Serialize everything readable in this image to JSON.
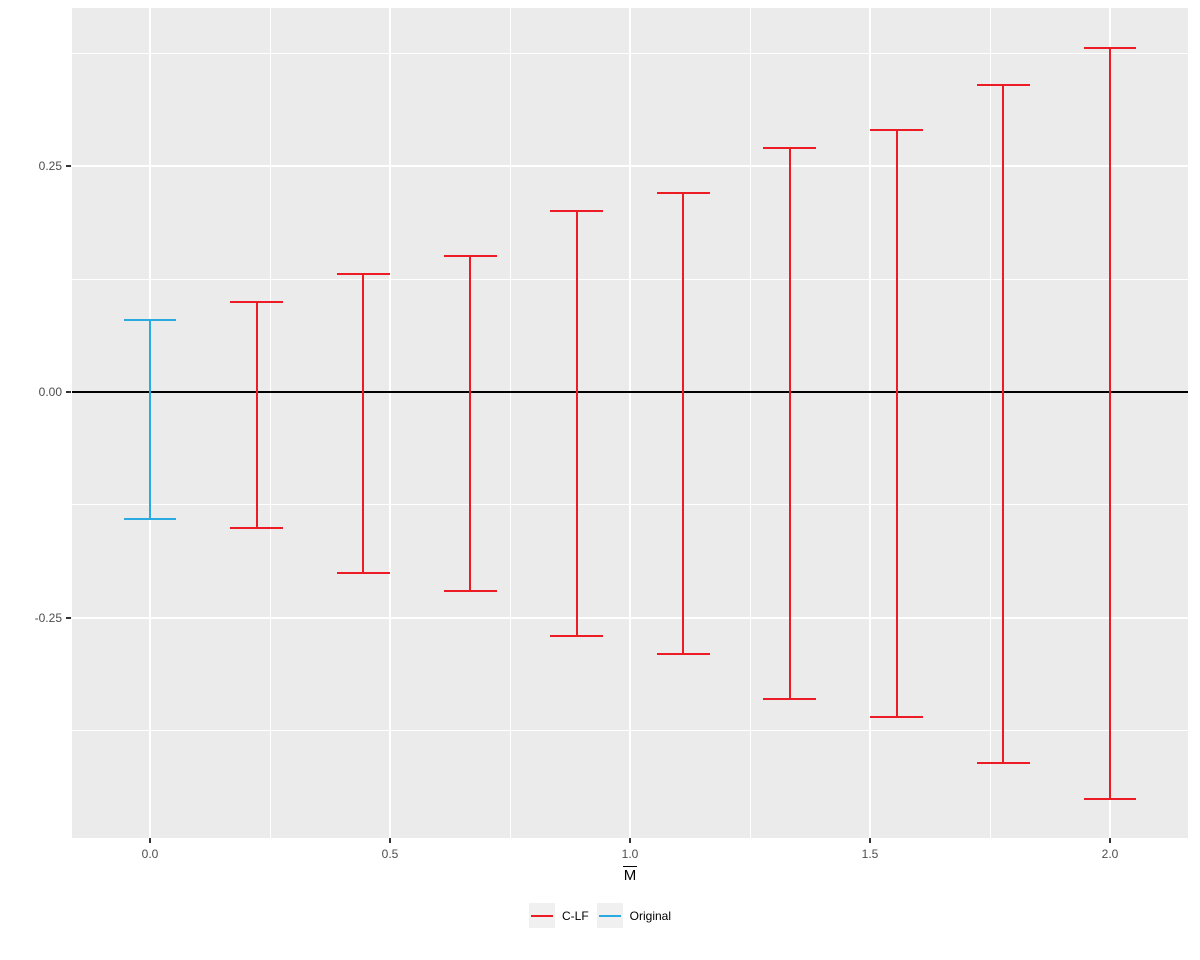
{
  "figure": {
    "background": "#FFFFFF",
    "panel_bg": "#EBEBEB",
    "grid_color": "#FFFFFF",
    "axis_text_color": "#4D4D4D",
    "zero_line_color": "#000000",
    "legend_key_bg": "#F0F0F0"
  },
  "chart_data": {
    "type": "errorbar",
    "title": "",
    "xlabel": "M",
    "xlabel_overline": true,
    "ylabel": "",
    "xlim": [
      -0.1625,
      2.1625
    ],
    "ylim": [
      -0.4934,
      0.4248
    ],
    "x_major_ticks": [
      0.0,
      0.5,
      1.0,
      1.5,
      2.0
    ],
    "x_tick_labels": [
      "0.0",
      "0.5",
      "1.0",
      "1.5",
      "2.0"
    ],
    "x_minor_ticks": [
      0.25,
      0.75,
      1.25,
      1.75
    ],
    "y_major_ticks": [
      0.25,
      0.0,
      -0.25
    ],
    "y_tick_labels": [
      "0.25",
      "0.00",
      "-0.25"
    ],
    "y_minor_ticks": [
      0.375,
      0.125,
      -0.125,
      -0.375
    ],
    "hline_y": 0,
    "grid": true,
    "legend_position": "bottom",
    "cap_half_width": 0.055,
    "series": [
      {
        "name": "C-LF",
        "color": "#ED1C24",
        "points": [
          {
            "x": 0.222,
            "ymin": -0.15,
            "ymax": 0.1
          },
          {
            "x": 0.444,
            "ymin": -0.2,
            "ymax": 0.13
          },
          {
            "x": 0.667,
            "ymin": -0.22,
            "ymax": 0.15
          },
          {
            "x": 0.889,
            "ymin": -0.27,
            "ymax": 0.2
          },
          {
            "x": 1.111,
            "ymin": -0.29,
            "ymax": 0.22
          },
          {
            "x": 1.333,
            "ymin": -0.34,
            "ymax": 0.27
          },
          {
            "x": 1.556,
            "ymin": -0.36,
            "ymax": 0.29
          },
          {
            "x": 1.778,
            "ymin": -0.41,
            "ymax": 0.34
          },
          {
            "x": 2.0,
            "ymin": -0.45,
            "ymax": 0.38
          }
        ]
      },
      {
        "name": "Original",
        "color": "#29ABE2",
        "points": [
          {
            "x": 0.0,
            "ymin": -0.14,
            "ymax": 0.08
          }
        ]
      }
    ],
    "legend": {
      "entries": [
        {
          "label": "C-LF",
          "color": "#ED1C24"
        },
        {
          "label": "Original",
          "color": "#29ABE2"
        }
      ]
    }
  }
}
